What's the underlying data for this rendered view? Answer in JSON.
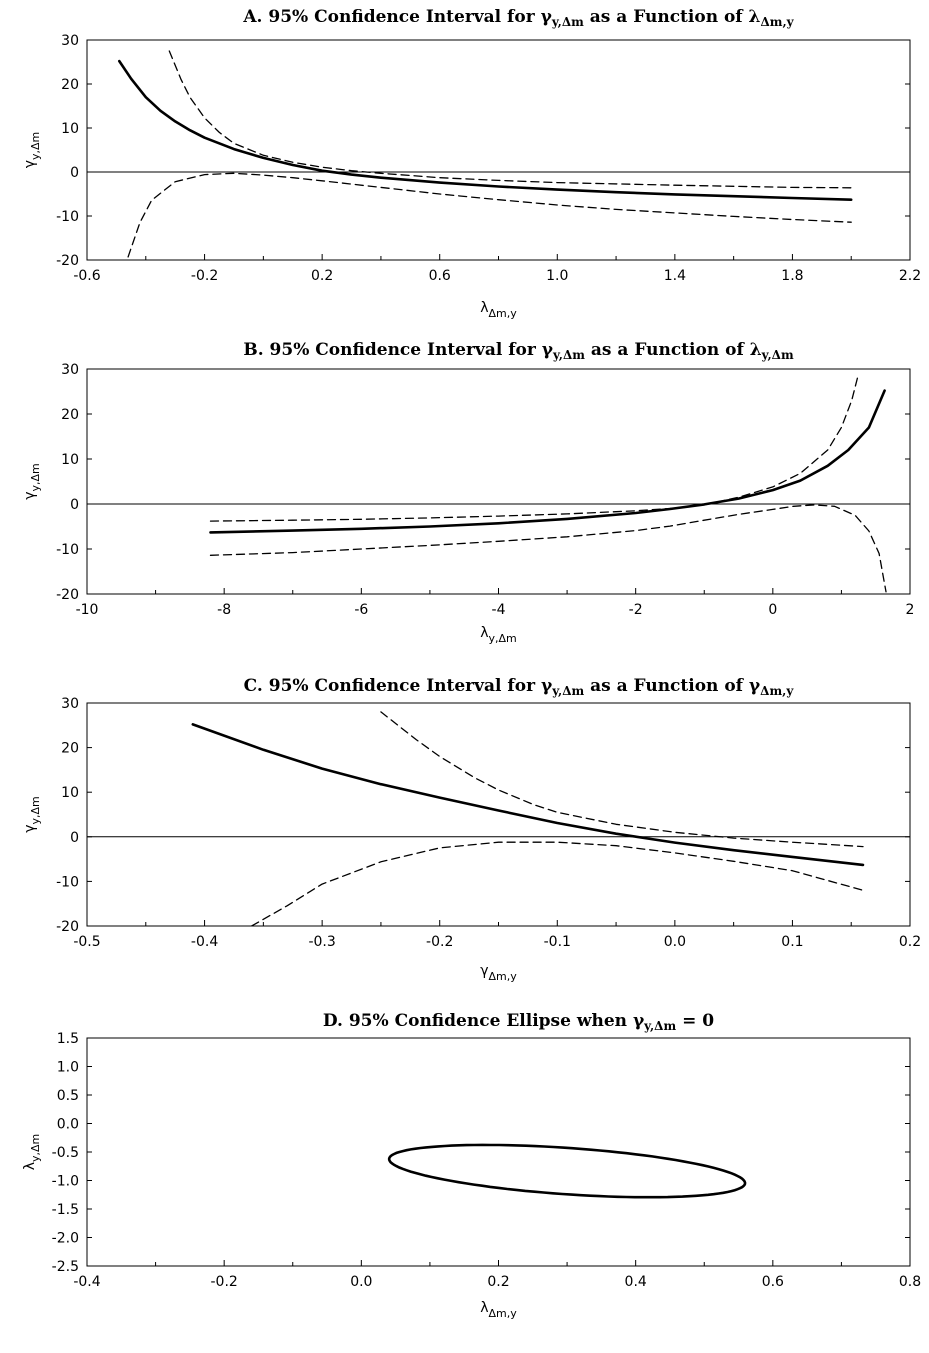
{
  "chart_data": [
    {
      "id": "A",
      "type": "line",
      "title": {
        "prefix": "A. 95% Confidence Interval for ",
        "g1": "γ",
        "g1_sub": "y,Δm",
        "middle": " as a Function of ",
        "g2": "λ",
        "g2_sub": "Δm,y"
      },
      "xlabel": {
        "main": "λ",
        "sub": "Δm,y"
      },
      "ylabel": {
        "main": "γ",
        "sub": "y,Δm"
      },
      "xlim": [
        -0.6,
        2.2
      ],
      "ylim": [
        -20,
        30
      ],
      "xticks": [
        "-0.6",
        "-0.2",
        "0.2",
        "0.6",
        "1.0",
        "1.4",
        "1.8",
        "2.2"
      ],
      "xtick_values": [
        -0.6,
        -0.2,
        0.2,
        0.6,
        1.0,
        1.4,
        1.8,
        2.2
      ],
      "yticks": [
        "30",
        "20",
        "10",
        "0",
        "-10",
        "-20"
      ],
      "ytick_values": [
        30,
        20,
        10,
        0,
        -10,
        -20
      ],
      "hline": 0,
      "series": [
        {
          "style": "solid",
          "x": [
            -0.49,
            -0.45,
            -0.4,
            -0.35,
            -0.3,
            -0.25,
            -0.2,
            -0.1,
            0.0,
            0.1,
            0.2,
            0.3,
            0.4,
            0.6,
            0.8,
            1.0,
            1.2,
            1.4,
            1.6,
            1.8,
            2.0
          ],
          "y": [
            25.2,
            21.2,
            17.0,
            13.9,
            11.5,
            9.5,
            7.8,
            5.2,
            3.2,
            1.6,
            0.3,
            -0.6,
            -1.3,
            -2.4,
            -3.3,
            -4.0,
            -4.6,
            -5.1,
            -5.5,
            -5.9,
            -6.3
          ]
        },
        {
          "style": "dashed",
          "x": [
            -0.32,
            -0.28,
            -0.25,
            -0.2,
            -0.15,
            -0.1,
            0.0,
            0.1,
            0.2,
            0.3,
            0.4,
            0.6,
            0.8,
            1.0,
            1.4,
            1.8,
            2.0
          ],
          "y": [
            27.5,
            21.0,
            17.0,
            12.3,
            9.0,
            6.5,
            3.8,
            2.2,
            1.1,
            0.3,
            -0.3,
            -1.3,
            -1.9,
            -2.4,
            -3.0,
            -3.5,
            -3.6
          ]
        },
        {
          "style": "dashed",
          "x": [
            -0.46,
            -0.42,
            -0.38,
            -0.3,
            -0.2,
            -0.1,
            0.0,
            0.1,
            0.2,
            0.4,
            0.6,
            0.8,
            1.0,
            1.2,
            1.4,
            1.6,
            1.8,
            2.0
          ],
          "y": [
            -19.3,
            -11.5,
            -6.4,
            -2.2,
            -0.6,
            -0.3,
            -0.7,
            -1.3,
            -2.0,
            -3.5,
            -5.0,
            -6.3,
            -7.5,
            -8.5,
            -9.3,
            -10.1,
            -10.8,
            -11.4
          ]
        }
      ]
    },
    {
      "id": "B",
      "type": "line",
      "title": {
        "prefix": "B. 95% Confidence Interval for ",
        "g1": "γ",
        "g1_sub": "y,Δm",
        "middle": " as a Function of ",
        "g2": "λ",
        "g2_sub": "y,Δm"
      },
      "xlabel": {
        "main": "λ",
        "sub": "y,Δm"
      },
      "ylabel": {
        "main": "γ",
        "sub": "y,Δm"
      },
      "xlim": [
        -10,
        2
      ],
      "ylim": [
        -20,
        30
      ],
      "xticks": [
        "-10",
        "-8",
        "-6",
        "-4",
        "-2",
        "0",
        "2"
      ],
      "xtick_values": [
        -10,
        -8,
        -6,
        -4,
        -2,
        0,
        2
      ],
      "yticks": [
        "30",
        "20",
        "10",
        "0",
        "-10",
        "-20"
      ],
      "ytick_values": [
        30,
        20,
        10,
        0,
        -10,
        -20
      ],
      "hline": 0,
      "series": [
        {
          "style": "solid",
          "x": [
            -8.2,
            -7,
            -6,
            -5,
            -4,
            -3,
            -2,
            -1.5,
            -1,
            -0.5,
            0,
            0.4,
            0.8,
            1.1,
            1.4,
            1.63
          ],
          "y": [
            -6.3,
            -5.9,
            -5.5,
            -5.0,
            -4.3,
            -3.3,
            -2.0,
            -1.1,
            -0.1,
            1.2,
            3.1,
            5.2,
            8.5,
            12.0,
            17.0,
            25.2
          ]
        },
        {
          "style": "dashed",
          "x": [
            -8.2,
            -7,
            -6,
            -5,
            -4,
            -3,
            -2,
            -1.5,
            -1,
            -0.5,
            0,
            0.4,
            0.8,
            1.0,
            1.15,
            1.25
          ],
          "y": [
            -3.8,
            -3.6,
            -3.4,
            -3.1,
            -2.7,
            -2.2,
            -1.5,
            -1.0,
            -0.2,
            1.5,
            3.8,
            6.8,
            12.0,
            17.0,
            23.0,
            29.0
          ]
        },
        {
          "style": "dashed",
          "x": [
            -8.2,
            -7,
            -6,
            -5,
            -4,
            -3,
            -2,
            -1.5,
            -1,
            -0.5,
            0,
            0.3,
            0.6,
            0.9,
            1.2,
            1.4,
            1.55,
            1.65
          ],
          "y": [
            -11.4,
            -10.8,
            -10.0,
            -9.2,
            -8.3,
            -7.3,
            -5.9,
            -4.9,
            -3.6,
            -2.3,
            -1.2,
            -0.5,
            -0.2,
            -0.5,
            -2.5,
            -6.0,
            -11.0,
            -19.5
          ]
        }
      ]
    },
    {
      "id": "C",
      "type": "line",
      "title": {
        "prefix": "C. 95% Confidence Interval for ",
        "g1": "γ",
        "g1_sub": "y,Δm",
        "middle": " as a Function of ",
        "g2": "γ",
        "g2_sub": "Δm,y"
      },
      "xlabel": {
        "main": "γ",
        "sub": "Δm,y"
      },
      "ylabel": {
        "main": "γ",
        "sub": "y,Δm"
      },
      "xlim": [
        -0.5,
        0.2
      ],
      "ylim": [
        -20,
        30
      ],
      "xticks": [
        "-0.5",
        "-0.4",
        "-0.3",
        "-0.2",
        "-0.1",
        "0.0",
        "0.1",
        "0.2"
      ],
      "xtick_values": [
        -0.5,
        -0.4,
        -0.3,
        -0.2,
        -0.1,
        0.0,
        0.1,
        0.2
      ],
      "yticks": [
        "30",
        "20",
        "10",
        "0",
        "-10",
        "-20"
      ],
      "ytick_values": [
        30,
        20,
        10,
        0,
        -10,
        -20
      ],
      "hline": 0,
      "series": [
        {
          "style": "solid",
          "x": [
            -0.41,
            -0.35,
            -0.3,
            -0.25,
            -0.2,
            -0.15,
            -0.1,
            -0.05,
            0.0,
            0.05,
            0.1,
            0.16
          ],
          "y": [
            25.2,
            19.5,
            15.3,
            11.8,
            8.8,
            5.9,
            3.1,
            0.7,
            -1.3,
            -3.0,
            -4.5,
            -6.3
          ]
        },
        {
          "style": "dashed",
          "x": [
            -0.25,
            -0.22,
            -0.2,
            -0.17,
            -0.15,
            -0.12,
            -0.1,
            -0.05,
            0.0,
            0.05,
            0.1,
            0.16
          ],
          "y": [
            28.0,
            21.8,
            18.0,
            13.2,
            10.5,
            7.2,
            5.5,
            2.8,
            1.0,
            -0.3,
            -1.2,
            -2.2
          ]
        },
        {
          "style": "dashed",
          "x": [
            -0.36,
            -0.33,
            -0.3,
            -0.25,
            -0.2,
            -0.15,
            -0.1,
            -0.05,
            0.0,
            0.05,
            0.1,
            0.16
          ],
          "y": [
            -20.0,
            -15.5,
            -10.6,
            -5.6,
            -2.5,
            -1.2,
            -1.2,
            -2.0,
            -3.6,
            -5.5,
            -7.6,
            -12.0
          ]
        }
      ]
    },
    {
      "id": "D",
      "type": "line",
      "title": {
        "prefix": "D. 95% Confidence Ellipse when ",
        "g1": "γ",
        "g1_sub": "y,Δm",
        "middle": " = 0",
        "g2": "",
        "g2_sub": ""
      },
      "xlabel": {
        "main": "λ",
        "sub": "Δm,y"
      },
      "ylabel": {
        "main": "λ",
        "sub": "y,Δm"
      },
      "xlim": [
        -0.4,
        0.8
      ],
      "ylim": [
        -2.5,
        1.5
      ],
      "xticks": [
        "-0.4",
        "-0.2",
        "0.0",
        "0.2",
        "0.4",
        "0.6",
        "0.8"
      ],
      "xtick_values": [
        -0.4,
        -0.2,
        0.0,
        0.2,
        0.4,
        0.6,
        0.8
      ],
      "yticks": [
        "1.5",
        "1.0",
        "0.5",
        "0.0",
        "-0.5",
        "-1.0",
        "-1.5",
        "-2.0",
        "-2.5"
      ],
      "ytick_values": [
        1.5,
        1.0,
        0.5,
        0.0,
        -0.5,
        -1.0,
        -1.5,
        -2.0,
        -2.5
      ],
      "hline": null,
      "ellipse": {
        "cx": 0.3,
        "cy": -0.835,
        "a": 0.265,
        "b": 0.095,
        "angle_deg": -12.6
      }
    }
  ]
}
